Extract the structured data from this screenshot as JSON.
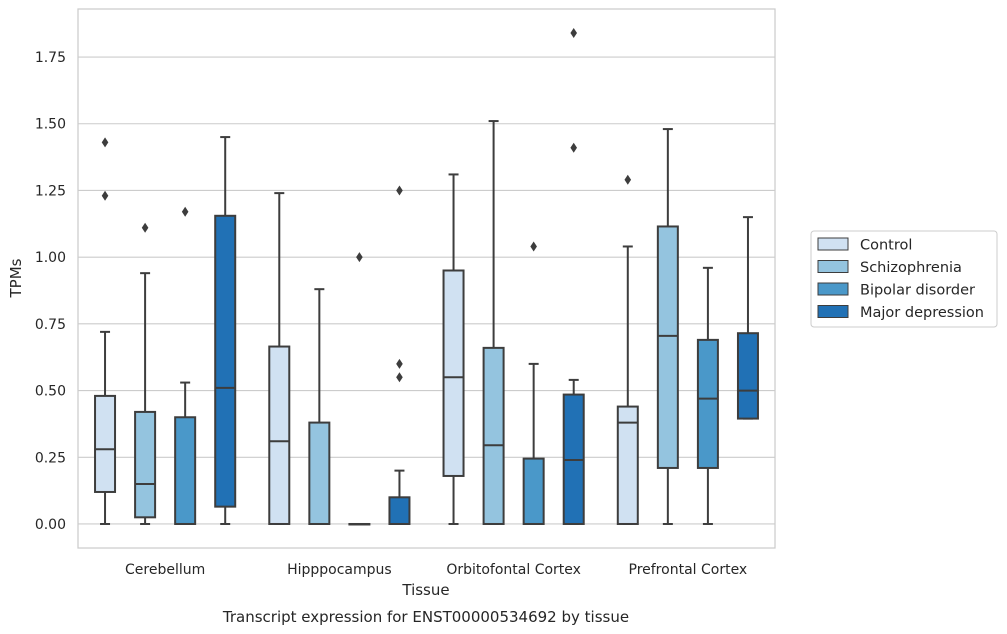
{
  "chart_data": {
    "type": "box",
    "title": "Transcript expression for ENST00000534692 by tissue",
    "xlabel": "Tissue",
    "ylabel": "TPMs",
    "ylim": [
      -0.09,
      1.93
    ],
    "yticks": [
      0.0,
      0.25,
      0.5,
      0.75,
      1.0,
      1.25,
      1.5,
      1.75
    ],
    "ytick_labels": [
      "0.00",
      "0.25",
      "0.50",
      "0.75",
      "1.00",
      "1.25",
      "1.50",
      "1.75"
    ],
    "grid": true,
    "legend_position": "right",
    "categories": [
      "Cerebellum",
      "Hipppocampus",
      "Orbitofontal Cortex",
      "Prefrontal Cortex"
    ],
    "series": [
      {
        "name": "Control",
        "color": "#d0e1f2",
        "boxes": [
          {
            "whislo": 0.0,
            "q1": 0.12,
            "med": 0.28,
            "q3": 0.48,
            "whishi": 0.72,
            "fliers": [
              1.23,
              1.43
            ]
          },
          {
            "whislo": 0.0,
            "q1": 0.0,
            "med": 0.31,
            "q3": 0.665,
            "whishi": 1.24,
            "fliers": []
          },
          {
            "whislo": 0.0,
            "q1": 0.18,
            "med": 0.55,
            "q3": 0.95,
            "whishi": 1.31,
            "fliers": []
          },
          {
            "whislo": 0.0,
            "q1": 0.0,
            "med": 0.38,
            "q3": 0.44,
            "whishi": 1.04,
            "fliers": [
              1.29
            ]
          }
        ]
      },
      {
        "name": "Schizophrenia",
        "color": "#94c4df",
        "boxes": [
          {
            "whislo": 0.0,
            "q1": 0.025,
            "med": 0.15,
            "q3": 0.42,
            "whishi": 0.94,
            "fliers": [
              1.11
            ]
          },
          {
            "whislo": 0.0,
            "q1": 0.0,
            "med": 0.0,
            "q3": 0.38,
            "whishi": 0.88,
            "fliers": []
          },
          {
            "whislo": 0.0,
            "q1": 0.0,
            "med": 0.295,
            "q3": 0.66,
            "whishi": 1.51,
            "fliers": []
          },
          {
            "whislo": 0.0,
            "q1": 0.21,
            "med": 0.705,
            "q3": 1.115,
            "whishi": 1.48,
            "fliers": []
          }
        ]
      },
      {
        "name": "Bipolar disorder",
        "color": "#4a98c9",
        "boxes": [
          {
            "whislo": 0.0,
            "q1": 0.0,
            "med": 0.0,
            "q3": 0.4,
            "whishi": 0.53,
            "fliers": [
              1.17
            ]
          },
          {
            "whislo": 0.0,
            "q1": 0.0,
            "med": 0.0,
            "q3": 0.0,
            "whishi": 0.0,
            "fliers": [
              1.0
            ]
          },
          {
            "whislo": 0.0,
            "q1": 0.0,
            "med": 0.0,
            "q3": 0.245,
            "whishi": 0.6,
            "fliers": [
              1.04
            ]
          },
          {
            "whislo": 0.0,
            "q1": 0.21,
            "med": 0.47,
            "q3": 0.69,
            "whishi": 0.96,
            "fliers": []
          }
        ]
      },
      {
        "name": "Major depression",
        "color": "#2171b5",
        "boxes": [
          {
            "whislo": 0.0,
            "q1": 0.065,
            "med": 0.51,
            "q3": 1.155,
            "whishi": 1.45,
            "fliers": []
          },
          {
            "whislo": 0.0,
            "q1": 0.0,
            "med": 0.0,
            "q3": 0.1,
            "whishi": 0.2,
            "fliers": [
              0.55,
              0.6,
              1.25
            ]
          },
          {
            "whislo": 0.0,
            "q1": 0.0,
            "med": 0.24,
            "q3": 0.485,
            "whishi": 0.54,
            "fliers": [
              1.41,
              1.84
            ]
          },
          {
            "whislo": 0.395,
            "q1": 0.395,
            "med": 0.5,
            "q3": 0.715,
            "whishi": 1.15,
            "fliers": []
          }
        ]
      }
    ]
  }
}
